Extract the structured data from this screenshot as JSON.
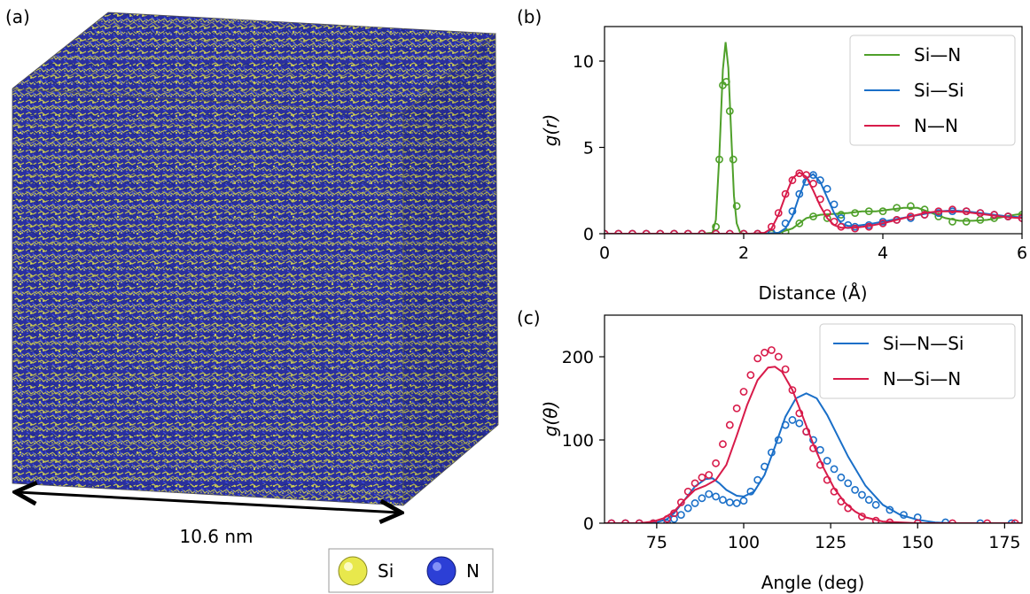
{
  "panel_a": {
    "label": "(a)",
    "scale_label": "10.6 nm",
    "legend": [
      {
        "name": "Si",
        "color": "#e6e64a"
      },
      {
        "name": "N",
        "color": "#2c3fd6"
      }
    ],
    "colors": {
      "box_blue": "#27289a",
      "atom_yellow": "#c8c84a"
    }
  },
  "chart_data": [
    {
      "panel": "(b)",
      "type": "line",
      "xlabel": "Distance (Å)",
      "ylabel": "g(r)",
      "xlim": [
        0,
        6
      ],
      "ylim": [
        0,
        12
      ],
      "xticks": [
        0,
        2,
        4,
        6
      ],
      "yticks": [
        0,
        5,
        10
      ],
      "legend_position": "top-right",
      "series": [
        {
          "name": "Si—N",
          "color": "#4fa02a",
          "line": {
            "x": [
              0,
              1.4,
              1.55,
              1.6,
              1.65,
              1.7,
              1.74,
              1.78,
              1.82,
              1.86,
              1.9,
              1.95,
              2.0,
              2.1,
              2.3,
              2.5,
              2.7,
              2.9,
              3.1,
              3.3,
              3.5,
              3.7,
              3.9,
              4.1,
              4.3,
              4.5,
              4.7,
              4.9,
              5.1,
              5.3,
              5.5,
              5.7,
              5.9,
              6.0
            ],
            "y": [
              0,
              0,
              0.05,
              0.8,
              4.5,
              9.5,
              11.1,
              9.6,
              5.8,
              2.2,
              0.6,
              0.05,
              0,
              0,
              0,
              0.05,
              0.3,
              0.9,
              1.1,
              1.15,
              1.2,
              1.3,
              1.3,
              1.4,
              1.5,
              1.5,
              1.2,
              0.9,
              0.75,
              0.75,
              0.8,
              0.95,
              1.1,
              1.15
            ]
          },
          "markers": {
            "x": [
              0,
              0.2,
              0.4,
              0.6,
              0.8,
              1.0,
              1.2,
              1.4,
              1.6,
              1.65,
              1.7,
              1.75,
              1.8,
              1.85,
              1.9,
              2.0,
              2.2,
              2.4,
              2.6,
              2.8,
              3.0,
              3.2,
              3.4,
              3.6,
              3.8,
              4.0,
              4.2,
              4.4,
              4.6,
              4.8,
              5.0,
              5.2,
              5.4,
              5.6,
              5.8,
              6.0
            ],
            "y": [
              0,
              0,
              0,
              0,
              0,
              0,
              0,
              0,
              0.4,
              4.3,
              8.6,
              8.8,
              7.1,
              4.3,
              1.6,
              0,
              0,
              0,
              0.1,
              0.6,
              1.0,
              0.9,
              1.1,
              1.2,
              1.3,
              1.3,
              1.5,
              1.6,
              1.4,
              1.0,
              0.7,
              0.7,
              0.8,
              0.9,
              1.0,
              1.1
            ]
          }
        },
        {
          "name": "Si—Si",
          "color": "#1a6fc8",
          "line": {
            "x": [
              0,
              2.3,
              2.5,
              2.6,
              2.7,
              2.8,
              2.9,
              3.0,
              3.1,
              3.2,
              3.3,
              3.4,
              3.5,
              3.6,
              3.8,
              4.0,
              4.2,
              4.4,
              4.6,
              4.8,
              5.0,
              5.2,
              5.4,
              5.6,
              5.8,
              6.0
            ],
            "y": [
              0,
              0,
              0.05,
              0.3,
              1.0,
              2.2,
              3.2,
              3.45,
              3.0,
              2.1,
              1.2,
              0.6,
              0.45,
              0.45,
              0.55,
              0.7,
              0.85,
              1.0,
              1.15,
              1.3,
              1.35,
              1.3,
              1.2,
              1.1,
              1.0,
              0.95
            ]
          },
          "markers": {
            "x": [
              0,
              0.2,
              0.4,
              0.6,
              0.8,
              1.0,
              1.2,
              1.4,
              1.6,
              1.8,
              2.0,
              2.2,
              2.4,
              2.6,
              2.7,
              2.8,
              2.9,
              3.0,
              3.1,
              3.2,
              3.3,
              3.4,
              3.5,
              3.6,
              3.8,
              4.0,
              4.2,
              4.4,
              4.6,
              4.8,
              5.0,
              5.2,
              5.4,
              5.6,
              5.8,
              6.0
            ],
            "y": [
              0,
              0,
              0,
              0,
              0,
              0,
              0,
              0,
              0,
              0,
              0,
              0,
              0.05,
              0.6,
              1.3,
              2.3,
              3.0,
              3.4,
              3.1,
              2.6,
              1.7,
              0.9,
              0.5,
              0.4,
              0.5,
              0.7,
              0.8,
              0.9,
              1.1,
              1.2,
              1.3,
              1.3,
              1.2,
              1.1,
              1.0,
              0.9
            ]
          }
        },
        {
          "name": "N—N",
          "color": "#d81b4a",
          "line": {
            "x": [
              0,
              2.1,
              2.3,
              2.4,
              2.5,
              2.6,
              2.7,
              2.8,
              2.9,
              3.0,
              3.1,
              3.2,
              3.3,
              3.4,
              3.6,
              3.8,
              4.0,
              4.2,
              4.4,
              4.6,
              4.8,
              5.0,
              5.2,
              5.4,
              5.6,
              5.8,
              6.0
            ],
            "y": [
              0,
              0,
              0.05,
              0.3,
              1.1,
              2.2,
              3.2,
              3.55,
              3.3,
              2.5,
              1.6,
              0.9,
              0.5,
              0.35,
              0.35,
              0.45,
              0.6,
              0.8,
              1.0,
              1.2,
              1.3,
              1.3,
              1.25,
              1.15,
              1.05,
              0.95,
              0.9
            ]
          },
          "markers": {
            "x": [
              0,
              0.2,
              0.4,
              0.6,
              0.8,
              1.0,
              1.2,
              1.4,
              1.6,
              1.8,
              2.0,
              2.2,
              2.4,
              2.5,
              2.6,
              2.7,
              2.8,
              2.9,
              3.0,
              3.1,
              3.2,
              3.3,
              3.4,
              3.6,
              3.8,
              4.0,
              4.2,
              4.4,
              4.6,
              4.8,
              5.0,
              5.2,
              5.4,
              5.6,
              5.8,
              6.0
            ],
            "y": [
              0,
              0,
              0,
              0,
              0,
              0,
              0,
              0,
              0,
              0,
              0,
              0,
              0.4,
              1.2,
              2.3,
              3.1,
              3.5,
              3.4,
              2.9,
              2.0,
              1.2,
              0.7,
              0.4,
              0.3,
              0.4,
              0.6,
              0.8,
              1.0,
              1.1,
              1.3,
              1.4,
              1.3,
              1.2,
              1.1,
              1.0,
              0.9
            ]
          }
        }
      ]
    },
    {
      "panel": "(c)",
      "type": "line",
      "xlabel": "Angle (deg)",
      "ylabel": "g(θ)",
      "xlim": [
        60,
        180
      ],
      "ylim": [
        0,
        250
      ],
      "xticks": [
        75,
        100,
        125,
        150,
        175
      ],
      "yticks": [
        0,
        100,
        200
      ],
      "legend_position": "top-right",
      "series": [
        {
          "name": "Si—N—Si",
          "color": "#1a6fc8",
          "line": {
            "x": [
              60,
              70,
              75,
              78,
              80,
              83,
              86,
              89,
              91,
              93,
              95,
              98,
              100,
              103,
              106,
              109,
              112,
              115,
              118,
              121,
              124,
              127,
              130,
              135,
              140,
              145,
              150,
              155,
              160,
              170,
              180
            ],
            "y": [
              0,
              0,
              1,
              5,
              12,
              28,
              44,
              53,
              54,
              48,
              40,
              33,
              32,
              38,
              58,
              92,
              128,
              150,
              156,
              150,
              130,
              105,
              80,
              45,
              22,
              10,
              4,
              1,
              0,
              0,
              0
            ]
          },
          "markers": {
            "x": [
              62,
              66,
              70,
              74,
              78,
              80,
              82,
              84,
              86,
              88,
              90,
              92,
              94,
              96,
              98,
              100,
              102,
              104,
              106,
              108,
              110,
              112,
              114,
              116,
              118,
              120,
              122,
              124,
              126,
              128,
              130,
              132,
              134,
              136,
              138,
              142,
              146,
              150,
              158,
              168,
              177
            ],
            "y": [
              0,
              0,
              0,
              0,
              0,
              5,
              10,
              18,
              24,
              30,
              35,
              32,
              28,
              25,
              24,
              27,
              38,
              52,
              68,
              85,
              100,
              118,
              124,
              120,
              110,
              100,
              88,
              75,
              65,
              55,
              48,
              40,
              34,
              28,
              22,
              16,
              10,
              7,
              1,
              0,
              0
            ]
          }
        },
        {
          "name": "N—Si—N",
          "color": "#d81b4a",
          "line": {
            "x": [
              60,
              70,
              74,
              77,
              80,
              83,
              86,
              89,
              92,
              95,
              98,
              101,
              104,
              107,
              109,
              111,
              114,
              117,
              120,
              123,
              126,
              129,
              132,
              135,
              140,
              145,
              150,
              160,
              170,
              180
            ],
            "y": [
              0,
              0,
              2,
              6,
              14,
              28,
              40,
              45,
              52,
              70,
              105,
              142,
              172,
              187,
              188,
              182,
              160,
              128,
              95,
              66,
              42,
              25,
              14,
              7,
              2,
              1,
              0,
              0,
              0,
              0
            ]
          },
          "markers": {
            "x": [
              62,
              66,
              70,
              74,
              78,
              80,
              82,
              84,
              86,
              88,
              90,
              92,
              94,
              96,
              98,
              100,
              102,
              104,
              106,
              108,
              110,
              112,
              114,
              116,
              118,
              120,
              122,
              124,
              126,
              128,
              130,
              134,
              138,
              142,
              150,
              160,
              170,
              178
            ],
            "y": [
              0,
              0,
              0,
              0,
              5,
              12,
              25,
              38,
              48,
              55,
              58,
              72,
              95,
              118,
              138,
              158,
              178,
              198,
              205,
              208,
              200,
              185,
              160,
              132,
              110,
              90,
              70,
              52,
              38,
              26,
              18,
              8,
              3,
              1,
              0,
              0,
              0,
              0
            ]
          }
        }
      ]
    }
  ]
}
